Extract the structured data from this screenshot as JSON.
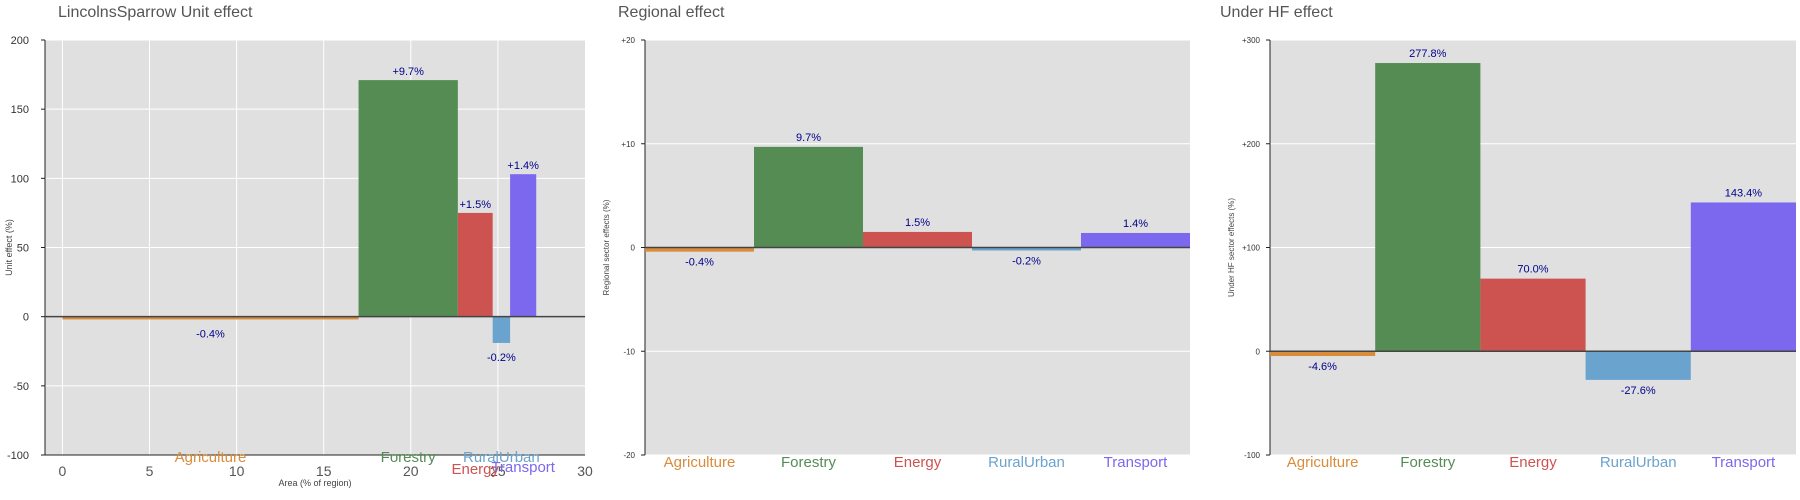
{
  "colors": {
    "Agriculture": "#d98c3a",
    "Forestry": "#548c54",
    "Energy": "#cd5350",
    "RuralUrban": "#6ba3cf",
    "Transport": "#7b68ee",
    "panel_bg": "#e0e0e0",
    "value_label": "#00008b"
  },
  "chart_data": [
    {
      "type": "bar",
      "title": "LincolnsSparrow Unit effect",
      "xlabel": "Area (% of region)",
      "ylabel": "Unit effect (%)",
      "ylim": [
        -100,
        200
      ],
      "xlim": [
        -1,
        30
      ],
      "yticks": [
        "-100",
        "-50",
        "0",
        "50",
        "100",
        "150",
        "200"
      ],
      "xticks": [
        "0",
        "5",
        "10",
        "15",
        "20",
        "25",
        "30"
      ],
      "categories": [
        "Agriculture",
        "Forestry",
        "Energy",
        "RuralUrban",
        "Transport"
      ],
      "bars": [
        {
          "sector": "Agriculture",
          "x_start": 0,
          "x_end": 17,
          "value": -2,
          "label": "-0.4%"
        },
        {
          "sector": "Forestry",
          "x_start": 17,
          "x_end": 22.7,
          "value": 171,
          "label": "+9.7%"
        },
        {
          "sector": "Energy",
          "x_start": 22.7,
          "x_end": 24.7,
          "value": 75,
          "label": "+1.5%"
        },
        {
          "sector": "RuralUrban",
          "x_start": 24.7,
          "x_end": 25.7,
          "value": -19,
          "label": "-0.2%"
        },
        {
          "sector": "Transport",
          "x_start": 25.7,
          "x_end": 27.2,
          "value": 103,
          "label": "+1.4%"
        }
      ],
      "grid": true
    },
    {
      "type": "bar",
      "title": "Regional effect",
      "xlabel": "",
      "ylabel": "Regional sector effects (%)",
      "ylim": [
        -20,
        20
      ],
      "yticks": [
        "-20",
        "-10",
        "0",
        "+10",
        "+20"
      ],
      "categories": [
        "Agriculture",
        "Forestry",
        "Energy",
        "RuralUrban",
        "Transport"
      ],
      "values": [
        -0.4,
        9.7,
        1.5,
        -0.2,
        1.4
      ],
      "value_labels": [
        "-0.4%",
        "9.7%",
        "1.5%",
        "-0.2%",
        "1.4%"
      ],
      "grid": true
    },
    {
      "type": "bar",
      "title": "Under HF effect",
      "xlabel": "",
      "ylabel": "Under HF sector effects (%)",
      "ylim": [
        -100,
        300
      ],
      "yticks": [
        "-100",
        "0",
        "+100",
        "+200",
        "+300"
      ],
      "categories": [
        "Agriculture",
        "Forestry",
        "Energy",
        "RuralUrban",
        "Transport"
      ],
      "values": [
        -4.6,
        277.8,
        70.0,
        -27.6,
        143.4
      ],
      "value_labels": [
        "-4.6%",
        "277.8%",
        "70.0%",
        "-27.6%",
        "143.4%"
      ],
      "grid": true
    }
  ]
}
